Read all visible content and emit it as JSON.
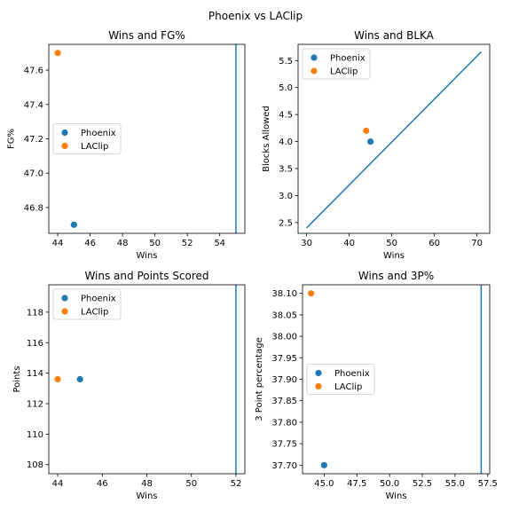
{
  "figure": {
    "suptitle": "Phoenix vs LAClip"
  },
  "colors": {
    "Phoenix": "#1f77b4",
    "LAClip": "#ff7f0e",
    "line": "#1f77b4"
  },
  "chart_data": [
    {
      "type": "scatter",
      "title": "Wins and FG%",
      "xlabel": "Wins",
      "ylabel": "FG%",
      "xlim": [
        43.45,
        55.55
      ],
      "ylim": [
        46.65,
        47.75
      ],
      "xticks": [
        44,
        46,
        48,
        50,
        52,
        54
      ],
      "yticks": [
        46.8,
        47.0,
        47.2,
        47.4,
        47.6
      ],
      "ytick_labels": [
        "46.8",
        "47.0",
        "47.2",
        "47.4",
        "47.6"
      ],
      "legend_loc": "center-left",
      "series": [
        {
          "name": "Phoenix",
          "x": [
            45
          ],
          "y": [
            46.7
          ]
        },
        {
          "name": "LAClip",
          "x": [
            44
          ],
          "y": [
            47.7
          ]
        }
      ],
      "vline": {
        "x": 55
      }
    },
    {
      "type": "scatter",
      "title": "Wins and BLKA",
      "xlabel": "Wins",
      "ylabel": "Blocks Allowed",
      "xlim": [
        28.0,
        73.0
      ],
      "ylim": [
        2.3,
        5.8
      ],
      "xticks": [
        30,
        40,
        50,
        60,
        70
      ],
      "yticks": [
        2.5,
        3.0,
        3.5,
        4.0,
        4.5,
        5.0,
        5.5
      ],
      "ytick_labels": [
        "2.5",
        "3.0",
        "3.5",
        "4.0",
        "4.5",
        "5.0",
        "5.5"
      ],
      "legend_loc": "upper-left",
      "series": [
        {
          "name": "Phoenix",
          "x": [
            45
          ],
          "y": [
            4.0
          ]
        },
        {
          "name": "LAClip",
          "x": [
            44
          ],
          "y": [
            4.2
          ]
        }
      ],
      "line": {
        "x": [
          30,
          71
        ],
        "y": [
          2.4,
          5.66
        ]
      }
    },
    {
      "type": "scatter",
      "title": "Wins and Points Scored",
      "xlabel": "Wins",
      "ylabel": "Points",
      "xlim": [
        43.6,
        52.4
      ],
      "ylim": [
        107.4,
        119.8
      ],
      "xticks": [
        44,
        46,
        48,
        50,
        52
      ],
      "yticks": [
        108,
        110,
        112,
        114,
        116,
        118
      ],
      "ytick_labels": [
        "108",
        "110",
        "112",
        "114",
        "116",
        "118"
      ],
      "legend_loc": "upper-left",
      "series": [
        {
          "name": "Phoenix",
          "x": [
            45
          ],
          "y": [
            113.6
          ]
        },
        {
          "name": "LAClip",
          "x": [
            44
          ],
          "y": [
            113.6
          ]
        }
      ],
      "vline": {
        "x": 52
      }
    },
    {
      "type": "scatter",
      "title": "Wins and 3P%",
      "xlabel": "Wins",
      "ylabel": "3 Point percentage",
      "xlim": [
        43.35,
        57.65
      ],
      "ylim": [
        37.68,
        38.12
      ],
      "xticks": [
        45,
        47.5,
        50,
        52.5,
        55,
        57.5
      ],
      "xtick_labels": [
        "45.0",
        "47.5",
        "50.0",
        "52.5",
        "55.0",
        "57.5"
      ],
      "yticks": [
        37.7,
        37.75,
        37.8,
        37.85,
        37.9,
        37.95,
        38.0,
        38.05,
        38.1
      ],
      "ytick_labels": [
        "37.70",
        "37.75",
        "37.80",
        "37.85",
        "37.90",
        "37.95",
        "38.00",
        "38.05",
        "38.10"
      ],
      "legend_loc": "center-left",
      "series": [
        {
          "name": "Phoenix",
          "x": [
            45
          ],
          "y": [
            37.7
          ]
        },
        {
          "name": "LAClip",
          "x": [
            44
          ],
          "y": [
            38.1
          ]
        }
      ],
      "vline": {
        "x": 57
      }
    }
  ]
}
